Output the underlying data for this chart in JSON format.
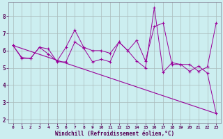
{
  "xlabel": "Windchill (Refroidissement éolien,°C)",
  "background_color": "#cceef0",
  "line_color": "#990099",
  "grid_color": "#aabbbb",
  "xlim": [
    -0.5,
    23.5
  ],
  "ylim": [
    1.8,
    8.8
  ],
  "yticks": [
    2,
    3,
    4,
    5,
    6,
    7,
    8
  ],
  "xticks": [
    0,
    1,
    2,
    3,
    4,
    5,
    6,
    7,
    8,
    9,
    10,
    11,
    12,
    13,
    14,
    15,
    16,
    17,
    18,
    19,
    20,
    21,
    22,
    23
  ],
  "line1_x": [
    0,
    1,
    2,
    3,
    4,
    5,
    6,
    7,
    8,
    9,
    10,
    11,
    12,
    13,
    14,
    15,
    16,
    17,
    18,
    19,
    20,
    21,
    22,
    23
  ],
  "line1_y": [
    6.3,
    5.6,
    5.55,
    6.2,
    5.8,
    5.4,
    6.2,
    7.2,
    6.2,
    6.0,
    6.0,
    5.85,
    6.5,
    6.0,
    5.4,
    5.0,
    8.5,
    4.75,
    5.3,
    5.2,
    4.8,
    5.1,
    4.7,
    2.35
  ],
  "line2_x": [
    0,
    1,
    2,
    3,
    4,
    5,
    6,
    7,
    8,
    9,
    10,
    11,
    12,
    13,
    14,
    15,
    16,
    17,
    18,
    19,
    20,
    21,
    22,
    23
  ],
  "line2_y": [
    6.3,
    5.55,
    5.55,
    6.2,
    6.1,
    5.35,
    5.35,
    6.5,
    6.15,
    5.35,
    5.5,
    5.35,
    6.5,
    6.0,
    6.6,
    5.4,
    7.4,
    7.6,
    5.2,
    5.2,
    5.2,
    4.8,
    5.05,
    7.6
  ],
  "line3_x": [
    0,
    23
  ],
  "line3_y": [
    6.3,
    2.35
  ]
}
